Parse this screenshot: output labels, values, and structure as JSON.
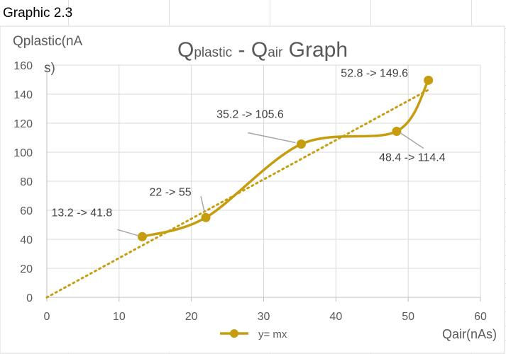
{
  "caption": "Graphic 2.3",
  "chart_data": {
    "type": "line",
    "title": "Qplastic - Qair Graph",
    "title_parts": {
      "q1": "Q",
      "sub1": "plastic",
      "sep": " - ",
      "q2": "Q",
      "sub2": "air",
      "tail": " Graph"
    },
    "xlabel": "Qair(nAs)",
    "ylabel_lines": [
      "Qplastic(nA",
      "s)"
    ],
    "xlim": [
      0,
      60
    ],
    "ylim": [
      0,
      160
    ],
    "x_ticks": [
      0,
      10,
      20,
      30,
      40,
      50,
      60
    ],
    "y_ticks": [
      0,
      20,
      40,
      60,
      80,
      100,
      120,
      140,
      160
    ],
    "grid": true,
    "legend_position": "bottom",
    "series": [
      {
        "name": "y= mx",
        "color": "#c59d0f",
        "smooth": true,
        "x": [
          13.2,
          22,
          35.2,
          48.4,
          52.8
        ],
        "values": [
          41.8,
          55,
          105.6,
          114.4,
          149.6
        ]
      }
    ],
    "trendline": {
      "type": "linear",
      "style": "dotted",
      "color": "#c59d0f",
      "from": [
        0,
        0
      ],
      "to": [
        52.8,
        143
      ]
    },
    "annotations": [
      {
        "text": "13.2 -> 41.8",
        "x": 13.2,
        "y": 41.8
      },
      {
        "text": "22 -> 55",
        "x": 22,
        "y": 55
      },
      {
        "text": "35.2 -> 105.6",
        "x": 35.2,
        "y": 105.6
      },
      {
        "text": "48.4 -> 114.4",
        "x": 48.4,
        "y": 114.4
      },
      {
        "text": "52.8 -> 149.6",
        "x": 52.8,
        "y": 149.6
      }
    ]
  }
}
